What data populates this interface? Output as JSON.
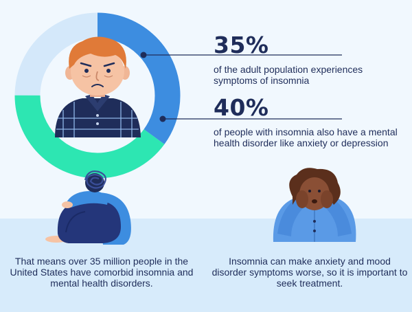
{
  "colors": {
    "background": "#f1f8fe",
    "band": "#d7ebfb",
    "ring_track": "#d4e8fa",
    "ring_blue": "#3d8de0",
    "ring_green": "#2de6b2",
    "navy": "#1f2d5a",
    "shirt_blue": "#5a9ae6"
  },
  "chart_data": {
    "type": "pie",
    "variant": "donut",
    "slices": [
      {
        "value": 35,
        "label": "35%",
        "description": "of the adult population experiences symptoms of insomnia",
        "color": "#3d8de0"
      },
      {
        "value": 40,
        "label": "40%",
        "description": "of people with insomnia also have a mental health disorder like anxiety or depression",
        "color": "#2de6b2"
      }
    ],
    "track_color": "#d4e8fa"
  },
  "stats": [
    {
      "value": "35%",
      "text": "of the adult population experiences symptoms of insomnia"
    },
    {
      "value": "40%",
      "text": "of people with insomnia also have a mental health disorder like anxiety or depression"
    }
  ],
  "captions": [
    "That means over 35 million people in the United States have comorbid insomnia and mental health disorders.",
    "Insomnia can make anxiety and mood disorder symptoms worse, so it is important to seek treatment."
  ],
  "illustrations": [
    "worried-man-icon",
    "hugging-knees-person-icon",
    "stressed-woman-icon"
  ]
}
